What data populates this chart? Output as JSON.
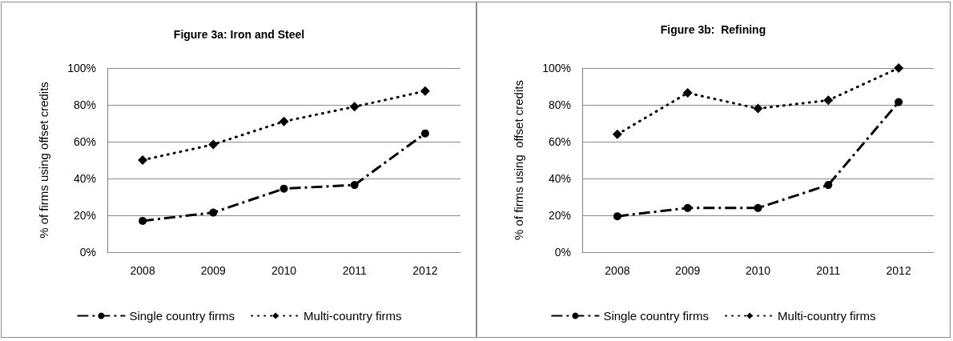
{
  "chart_data": [
    {
      "type": "line",
      "title": "Figure 3a: Iron and Steel",
      "ylabel": "% of firms using offset credits",
      "categories": [
        "2008",
        "2009",
        "2010",
        "2011",
        "2012"
      ],
      "series": [
        {
          "name": "Single country firms",
          "color": "#000000",
          "marker": "circle",
          "line_style": "dashed",
          "values": [
            17,
            21.5,
            34.5,
            36.5,
            64.5
          ]
        },
        {
          "name": "Multi-country firms",
          "color": "#000000",
          "marker": "diamond",
          "line_style": "dotted",
          "values": [
            50,
            58.5,
            71,
            79,
            87.5
          ]
        }
      ],
      "ylim": [
        0,
        100
      ],
      "yticks": [
        {
          "value": 0,
          "label": "0%"
        },
        {
          "value": 20,
          "label": "20%"
        },
        {
          "value": 40,
          "label": "40%"
        },
        {
          "value": 60,
          "label": "60%"
        },
        {
          "value": 80,
          "label": "80%"
        },
        {
          "value": 100,
          "label": "100%"
        }
      ],
      "grid": "y",
      "legend": "bottom"
    },
    {
      "type": "line",
      "title": "Figure 3b:  Refining",
      "ylabel": "% of firms using  offset credits",
      "categories": [
        "2008",
        "2009",
        "2010",
        "2011",
        "2012"
      ],
      "series": [
        {
          "name": "Single country firms",
          "color": "#000000",
          "marker": "circle",
          "line_style": "dashed",
          "values": [
            19.5,
            24,
            24,
            36.5,
            81.5
          ]
        },
        {
          "name": "Multi-country firms",
          "color": "#000000",
          "marker": "diamond",
          "line_style": "dotted",
          "values": [
            64,
            86.5,
            78,
            82.5,
            100
          ]
        }
      ],
      "ylim": [
        0,
        100
      ],
      "yticks": [
        {
          "value": 0,
          "label": "0%"
        },
        {
          "value": 20,
          "label": "20%"
        },
        {
          "value": 40,
          "label": "40%"
        },
        {
          "value": 60,
          "label": "60%"
        },
        {
          "value": 80,
          "label": "80%"
        },
        {
          "value": 100,
          "label": "100%"
        }
      ],
      "grid": "y",
      "legend": "bottom"
    }
  ]
}
